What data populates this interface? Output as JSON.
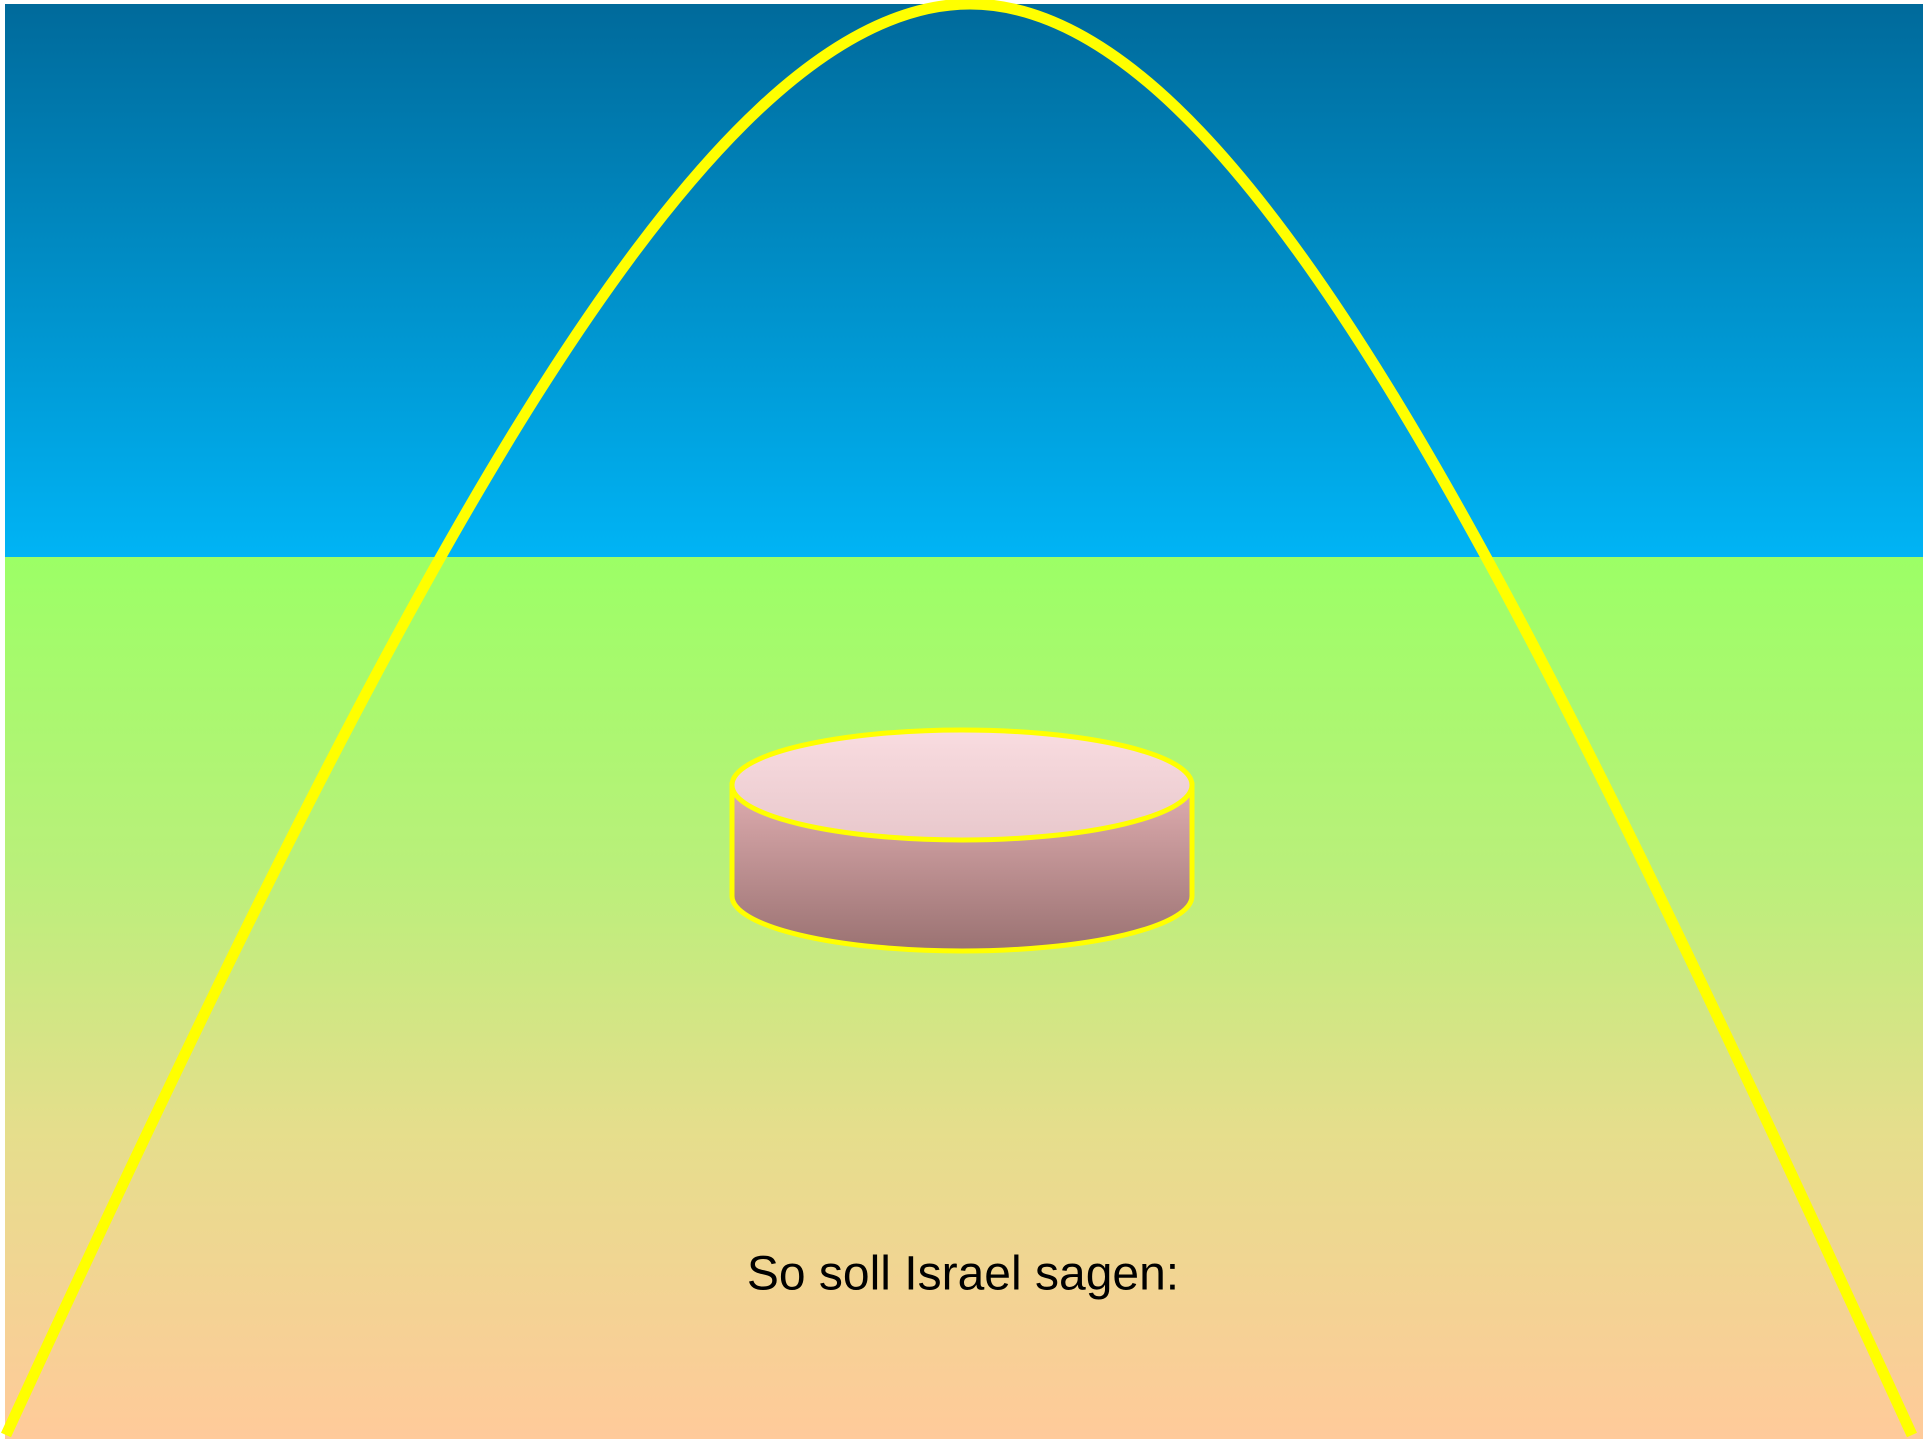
{
  "caption": "So soll Israel sagen:"
}
